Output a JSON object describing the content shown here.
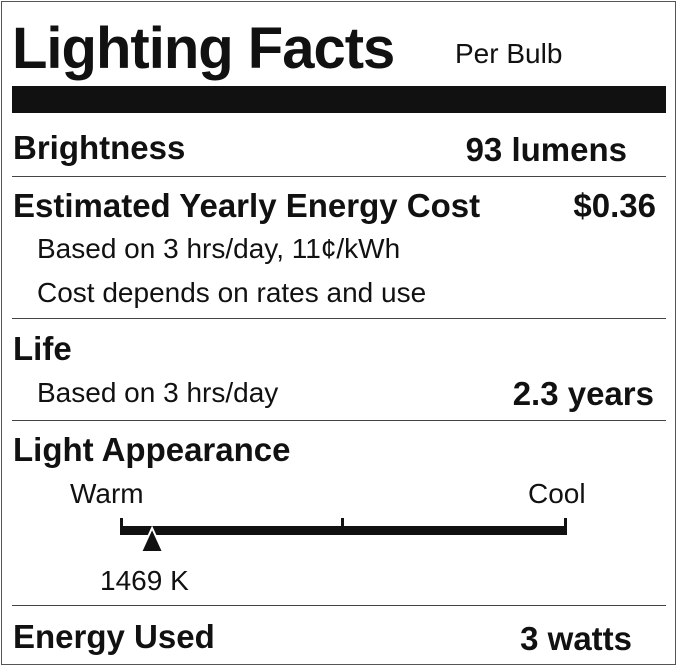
{
  "header": {
    "title": "Lighting Facts",
    "subtitle": "Per Bulb"
  },
  "brightness": {
    "label": "Brightness",
    "value": "93 lumens"
  },
  "energy_cost": {
    "label": "Estimated Yearly Energy Cost",
    "value": "$0.36",
    "note1": "Based on 3 hrs/day, 11¢/kWh",
    "note2": "Cost depends on rates and use"
  },
  "life": {
    "label": "Life",
    "note": "Based on 3 hrs/day",
    "value": "2.3 years"
  },
  "light_appearance": {
    "label": "Light Appearance",
    "warm_label": "Warm",
    "cool_label": "Cool",
    "value": "1469 K",
    "marker_position_fraction": 0.07
  },
  "energy_used": {
    "label": "Energy Used",
    "value": "3 watts"
  },
  "colors": {
    "ink": "#111111",
    "background": "#ffffff"
  }
}
